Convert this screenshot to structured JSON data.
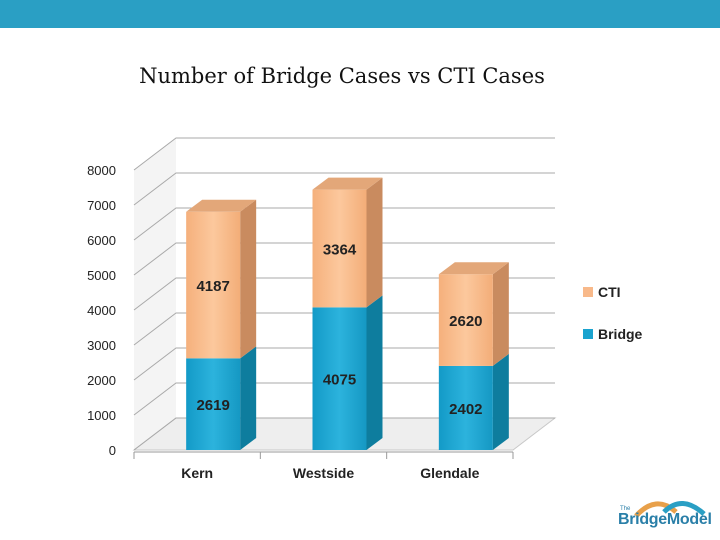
{
  "header": {
    "band_color": "#2a9fc4"
  },
  "logo": {
    "small": "The",
    "text": "BridgeModel",
    "arc_colors": [
      "#e8a04a",
      "#2a9fc4"
    ]
  },
  "chart_data": {
    "type": "bar",
    "stacked": true,
    "three_d": true,
    "title": "Number of Bridge Cases vs CTI Cases",
    "xlabel": "",
    "ylabel": "",
    "categories": [
      "Kern",
      "Westside",
      "Glendale"
    ],
    "series": [
      {
        "name": "Bridge",
        "values": [
          2619,
          4075,
          2402
        ],
        "color": "#1aa3cf"
      },
      {
        "name": "CTI",
        "values": [
          4187,
          3364,
          2620
        ],
        "color": "#f8b98a"
      }
    ],
    "ylim": [
      0,
      8000
    ],
    "yticks": [
      "0",
      "1000",
      "2000",
      "3000",
      "4000",
      "5000",
      "6000",
      "7000",
      "8000"
    ],
    "grid": true,
    "legend_position": "right"
  }
}
